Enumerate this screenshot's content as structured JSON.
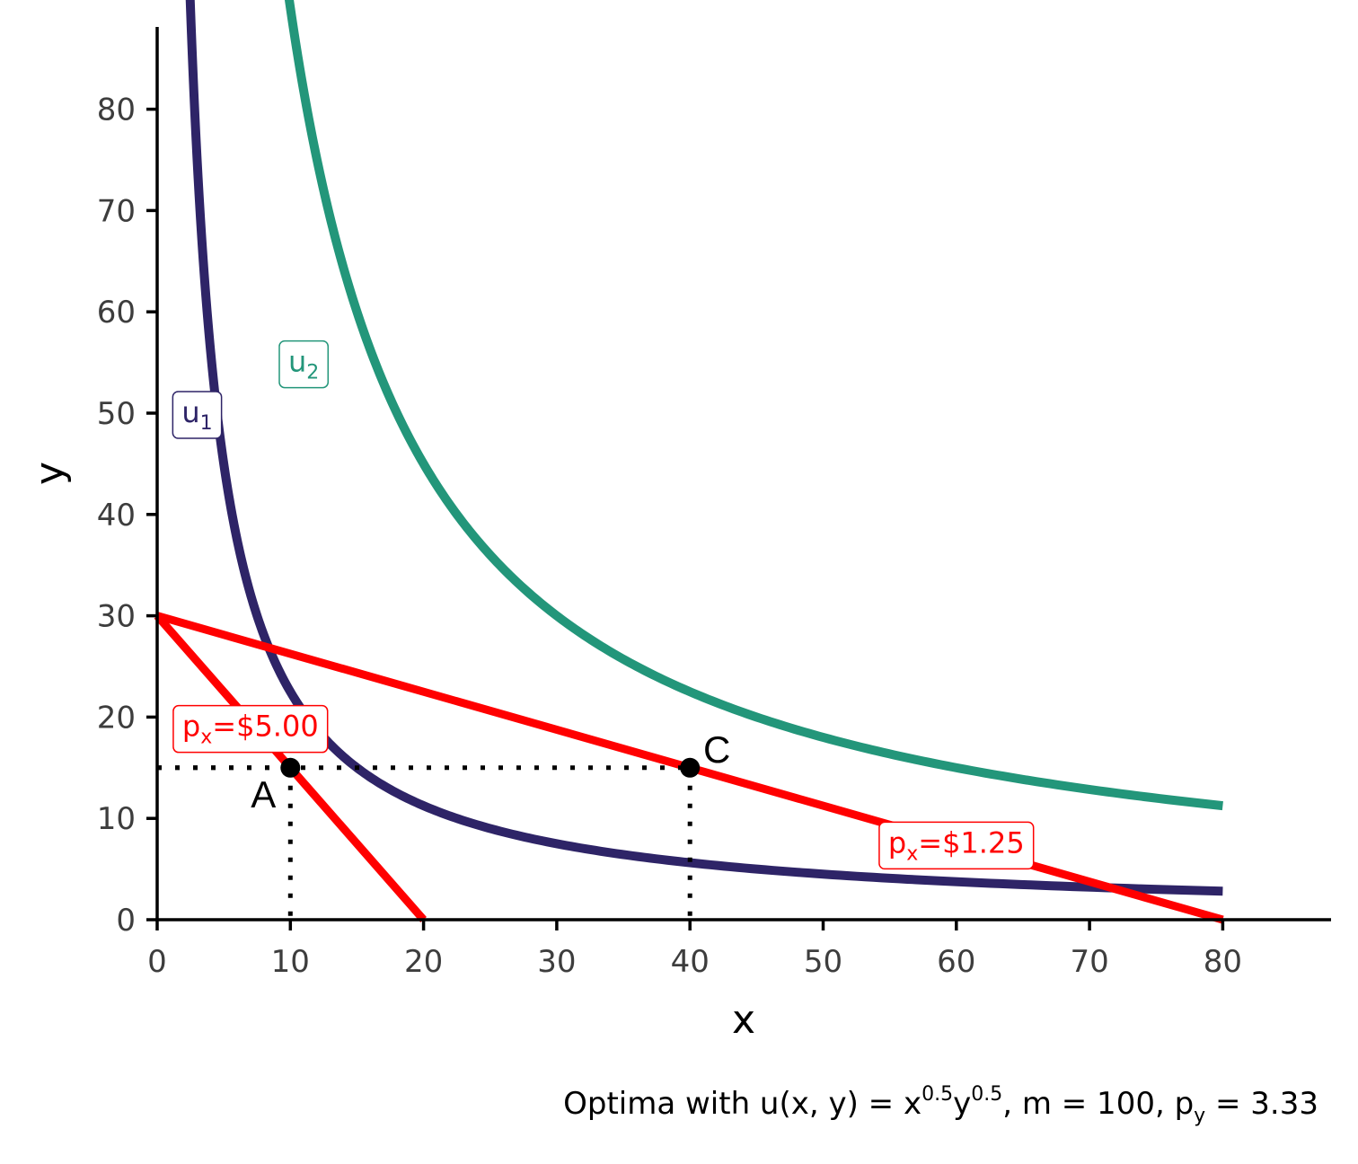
{
  "chart_data": {
    "type": "line",
    "title": "",
    "xlabel": "x",
    "ylabel": "y",
    "xlim": [
      0,
      88
    ],
    "ylim": [
      0,
      88
    ],
    "xticks": [
      0,
      10,
      20,
      30,
      40,
      50,
      60,
      70,
      80
    ],
    "yticks": [
      0,
      10,
      20,
      30,
      40,
      50,
      60,
      70,
      80
    ],
    "caption": {
      "prefix": "Optima with u(x, y) = x",
      "exp1": "0.5",
      "mid1": "y",
      "exp2": "0.5",
      "mid2": ", m = 100, p",
      "sub": "y",
      "suffix": " = 3.33"
    },
    "indifference_curves": [
      {
        "name": "u",
        "sub": "1",
        "utility": 15,
        "x_start": 2.4,
        "x_end": 80,
        "color": "#2e2467",
        "label_at": [
          3,
          50
        ]
      },
      {
        "name": "u",
        "sub": "2",
        "utility": 30,
        "x_start": 8,
        "x_end": 80,
        "color": "#23967a",
        "label_at": [
          11,
          55
        ]
      }
    ],
    "budget_lines": [
      {
        "label_prefix": "p",
        "label_sub": "x",
        "label_suffix": "=$5.00",
        "x_intercept": 20,
        "y_intercept": 30,
        "color": "#ff0000",
        "label_at": [
          7,
          19
        ]
      },
      {
        "label_prefix": "p",
        "label_sub": "x",
        "label_suffix": "=$1.25",
        "x_intercept": 80,
        "y_intercept": 30,
        "color": "#ff0000",
        "label_at": [
          60,
          7.5
        ]
      }
    ],
    "points": [
      {
        "label": "A",
        "x": 10,
        "y": 15
      },
      {
        "label": "C",
        "x": 40,
        "y": 15
      }
    ]
  }
}
